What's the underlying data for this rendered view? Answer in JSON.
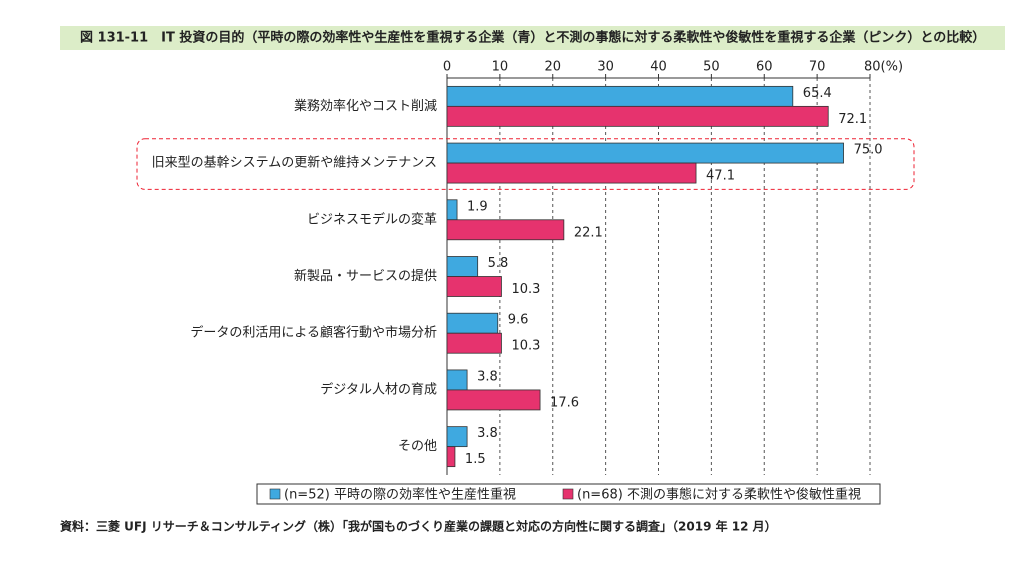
{
  "chart_data": {
    "type": "hbar",
    "title": "図 131-11　IT 投資の目的（平時の際の効率性や生産性を重視する企業（青）と不測の事態に対する柔軟性や俊敏性を重視する企業（ピンク）との比較）",
    "source": "資料：三菱 UFJ リサーチ＆コンサルティング（株）「我が国ものづくり産業の課題と対応の方向性に関する調査」（2019 年 12 月）",
    "categories": [
      "業務効率化やコスト削減",
      "旧来型の基幹システムの更新や維持メンテナンス",
      "ビジネスモデルの変革",
      "新製品・サービスの提供",
      "データの利活用による顧客行動や市場分析",
      "デジタル人材の育成",
      "その他"
    ],
    "series": [
      {
        "name": "(n=52) 平時の際の効率性や生産性重視",
        "color": "#3fa9e0",
        "values": [
          65.4,
          75.0,
          1.9,
          5.8,
          9.6,
          3.8,
          3.8
        ],
        "value_labels": [
          "65.4",
          "75.0",
          "1.9",
          "5.8",
          "9.6",
          "3.8",
          "3.8"
        ]
      },
      {
        "name": "(n=68) 不測の事態に対する柔軟性や俊敏性重視",
        "color": "#e6336e",
        "values": [
          72.1,
          47.1,
          22.1,
          10.3,
          10.3,
          17.6,
          1.5
        ],
        "value_labels": [
          "72.1",
          "47.1",
          "22.1",
          "10.3",
          "10.3",
          "17.6",
          "1.5"
        ]
      }
    ],
    "xlim": [
      0,
      80
    ],
    "xticks": [
      0,
      10,
      20,
      30,
      40,
      50,
      60,
      70,
      {
        "value": 80,
        "label": "80(%)"
      }
    ],
    "grid": true
  }
}
